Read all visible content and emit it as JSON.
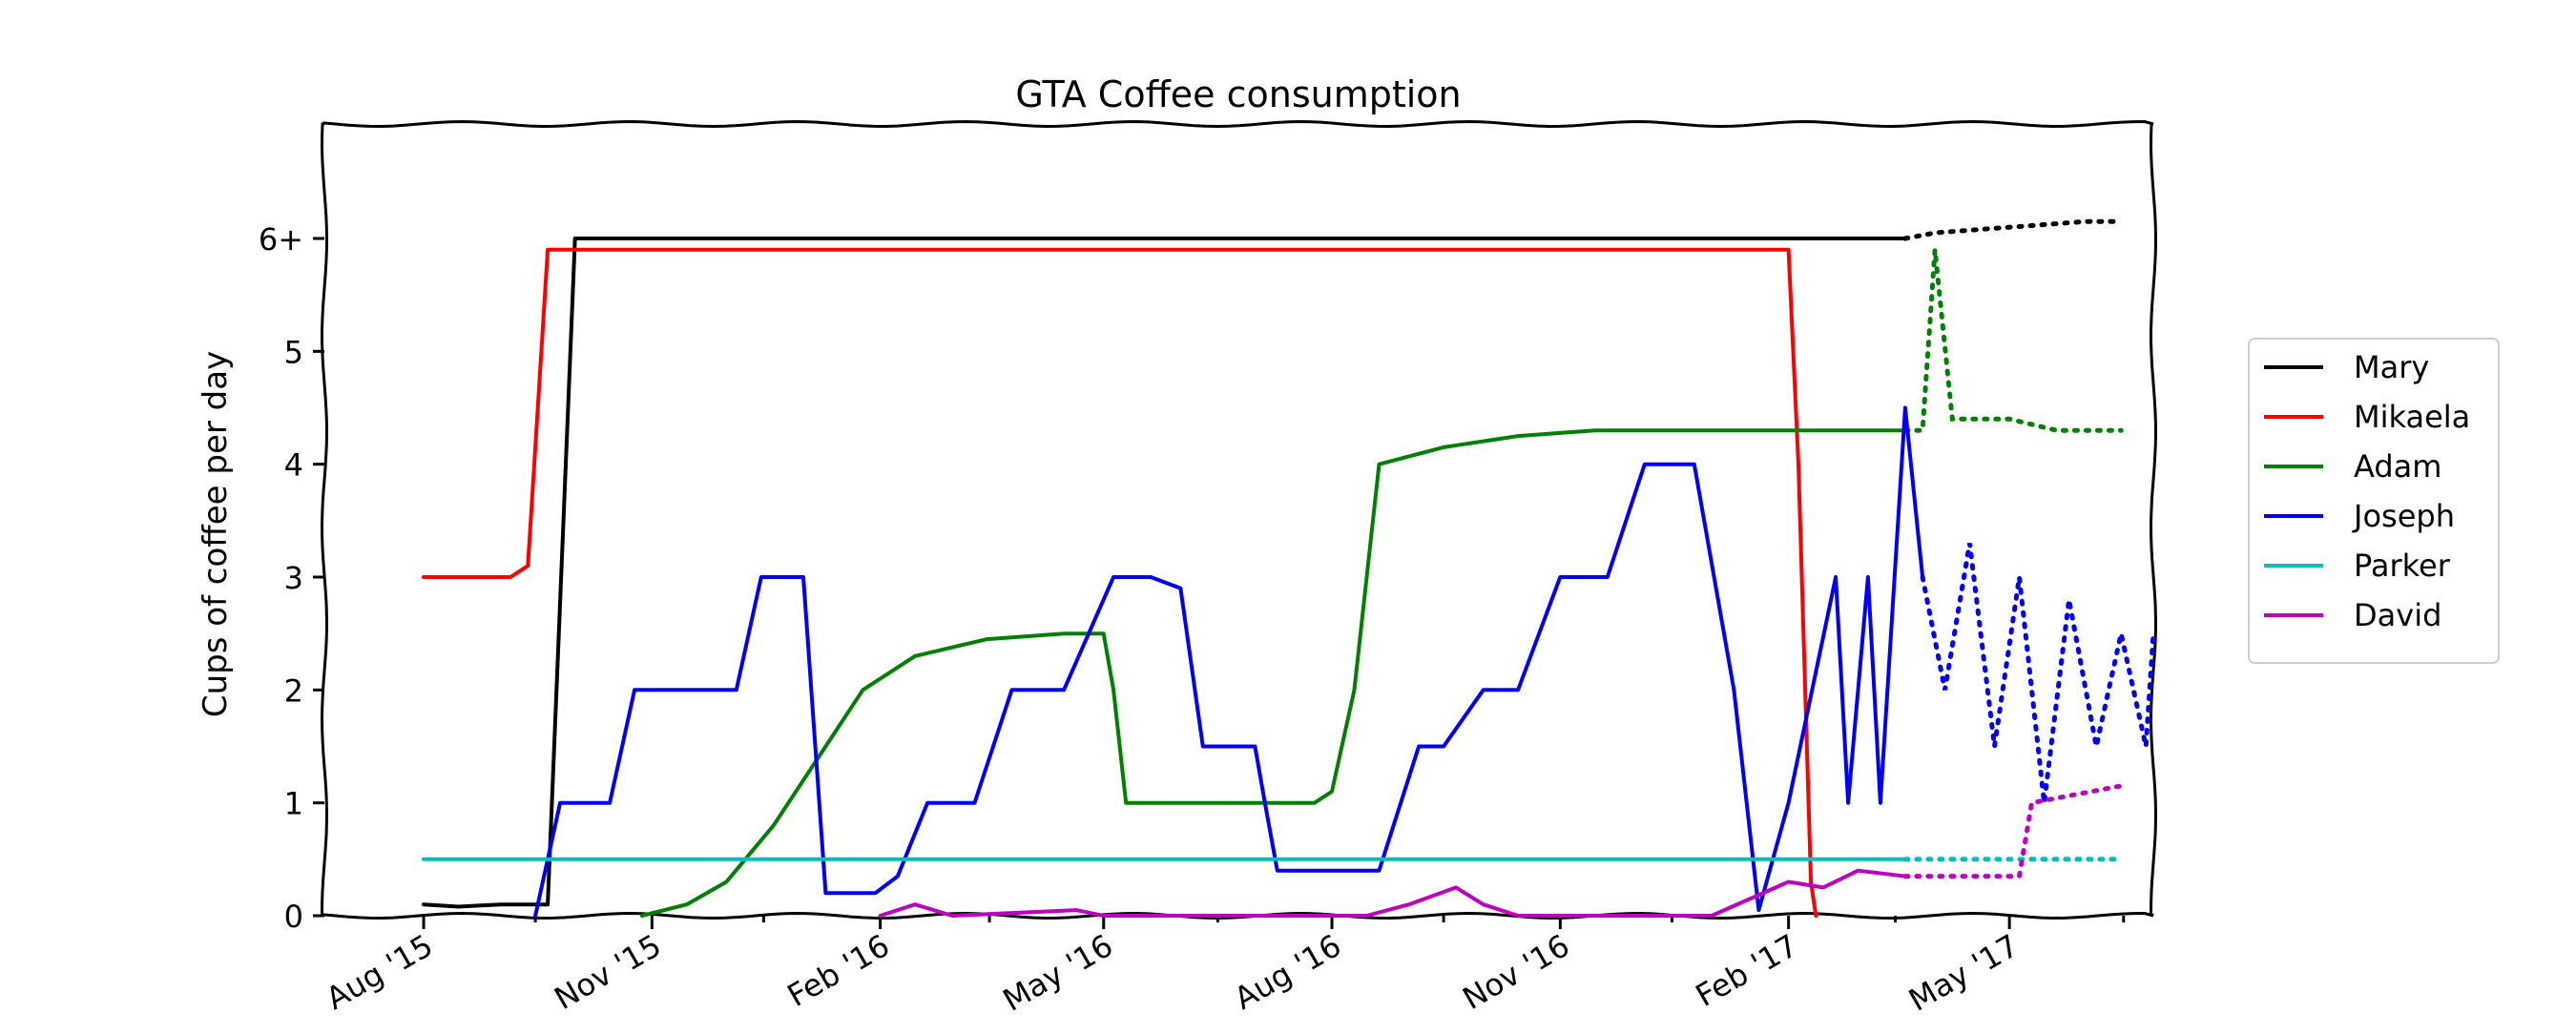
{
  "chart_data": {
    "type": "line",
    "title": "GTA Coffee consumption",
    "xlabel": "",
    "ylabel": "Cups of coffee per day",
    "x_ticks": [
      "Aug '15",
      "Nov '15",
      "Feb '16",
      "May '16",
      "Aug '16",
      "Nov '16",
      "Feb '17",
      "May '17"
    ],
    "y_ticks": [
      {
        "value": 0,
        "label": "0"
      },
      {
        "value": 1,
        "label": "1"
      },
      {
        "value": 2,
        "label": "2"
      },
      {
        "value": 3,
        "label": "3"
      },
      {
        "value": 4,
        "label": "4"
      },
      {
        "value": 5,
        "label": "5"
      },
      {
        "value": 6,
        "label": "6+"
      }
    ],
    "xlim": [
      "2015-06-22",
      "2017-06-28"
    ],
    "ylim": [
      0,
      6.0
    ],
    "grid": false,
    "legend_position": "right",
    "series": [
      {
        "name": "Mary",
        "color": "#000000",
        "solid": [
          [
            "2015-08-01",
            0.1
          ],
          [
            "2015-08-15",
            0.08
          ],
          [
            "2015-09-01",
            0.1
          ],
          [
            "2015-09-10",
            0.1
          ],
          [
            "2015-09-20",
            0.1
          ],
          [
            "2015-10-01",
            6.0
          ],
          [
            "2015-11-01",
            6.0
          ],
          [
            "2015-12-01",
            6.0
          ],
          [
            "2016-01-01",
            6.0
          ],
          [
            "2016-02-01",
            6.0
          ],
          [
            "2016-03-01",
            6.0
          ],
          [
            "2016-04-01",
            6.0
          ],
          [
            "2016-05-01",
            6.0
          ],
          [
            "2016-06-01",
            6.0
          ],
          [
            "2016-07-01",
            6.0
          ],
          [
            "2016-08-01",
            6.0
          ],
          [
            "2016-09-01",
            6.0
          ],
          [
            "2016-10-01",
            6.0
          ],
          [
            "2016-11-01",
            6.0
          ],
          [
            "2016-12-01",
            6.0
          ],
          [
            "2017-01-01",
            6.0
          ],
          [
            "2017-02-01",
            6.0
          ],
          [
            "2017-03-01",
            6.0
          ],
          [
            "2017-03-20",
            6.0
          ]
        ],
        "dotted": [
          [
            "2017-03-20",
            6.0
          ],
          [
            "2017-04-01",
            6.05
          ],
          [
            "2017-05-01",
            6.1
          ],
          [
            "2017-06-01",
            6.15
          ],
          [
            "2017-06-15",
            6.15
          ]
        ]
      },
      {
        "name": "Mikaela",
        "color": "#ff0000",
        "solid": [
          [
            "2015-08-01",
            3.0
          ],
          [
            "2015-08-10",
            3.0
          ],
          [
            "2015-08-25",
            3.0
          ],
          [
            "2015-09-05",
            3.0
          ],
          [
            "2015-09-12",
            3.1
          ],
          [
            "2015-09-20",
            5.9
          ],
          [
            "2015-10-15",
            5.9
          ],
          [
            "2015-12-01",
            5.9
          ],
          [
            "2016-02-01",
            5.9
          ],
          [
            "2016-05-01",
            5.9
          ],
          [
            "2016-08-01",
            5.9
          ],
          [
            "2016-11-01",
            5.9
          ],
          [
            "2017-01-01",
            5.9
          ],
          [
            "2017-02-01",
            5.9
          ],
          [
            "2017-02-05",
            4.0
          ],
          [
            "2017-02-10",
            0.3
          ],
          [
            "2017-02-12",
            0.0
          ]
        ],
        "dotted": []
      },
      {
        "name": "Adam",
        "color": "#008000",
        "solid": [
          [
            "2015-10-28",
            0.0
          ],
          [
            "2015-11-15",
            0.1
          ],
          [
            "2015-12-01",
            0.3
          ],
          [
            "2015-12-20",
            0.8
          ],
          [
            "2016-01-10",
            1.5
          ],
          [
            "2016-01-25",
            2.0
          ],
          [
            "2016-02-15",
            2.3
          ],
          [
            "2016-03-15",
            2.45
          ],
          [
            "2016-04-15",
            2.5
          ],
          [
            "2016-05-01",
            2.5
          ],
          [
            "2016-05-05",
            2.0
          ],
          [
            "2016-05-10",
            1.0
          ],
          [
            "2016-06-01",
            1.0
          ],
          [
            "2016-07-01",
            1.0
          ],
          [
            "2016-07-25",
            1.0
          ],
          [
            "2016-08-01",
            1.1
          ],
          [
            "2016-08-10",
            2.0
          ],
          [
            "2016-08-20",
            4.0
          ],
          [
            "2016-09-15",
            4.15
          ],
          [
            "2016-10-15",
            4.25
          ],
          [
            "2016-11-15",
            4.3
          ],
          [
            "2017-01-01",
            4.3
          ],
          [
            "2017-03-01",
            4.3
          ],
          [
            "2017-03-20",
            4.3
          ]
        ],
        "dotted": [
          [
            "2017-03-20",
            4.3
          ],
          [
            "2017-03-27",
            4.3
          ],
          [
            "2017-04-01",
            5.9
          ],
          [
            "2017-04-08",
            4.4
          ],
          [
            "2017-05-01",
            4.4
          ],
          [
            "2017-05-20",
            4.3
          ],
          [
            "2017-06-15",
            4.3
          ]
        ]
      },
      {
        "name": "Joseph",
        "color": "#0000ff",
        "solid": [
          [
            "2015-09-15",
            0.0
          ],
          [
            "2015-09-25",
            1.0
          ],
          [
            "2015-10-15",
            1.0
          ],
          [
            "2015-10-25",
            2.0
          ],
          [
            "2015-11-15",
            2.0
          ],
          [
            "2015-12-05",
            2.0
          ],
          [
            "2015-12-15",
            3.0
          ],
          [
            "2016-01-01",
            3.0
          ],
          [
            "2016-01-10",
            0.2
          ],
          [
            "2016-01-30",
            0.2
          ],
          [
            "2016-02-08",
            0.35
          ],
          [
            "2016-02-20",
            1.0
          ],
          [
            "2016-03-10",
            1.0
          ],
          [
            "2016-03-25",
            2.0
          ],
          [
            "2016-04-15",
            2.0
          ],
          [
            "2016-05-05",
            3.0
          ],
          [
            "2016-05-20",
            3.0
          ],
          [
            "2016-06-01",
            2.9
          ],
          [
            "2016-06-10",
            1.5
          ],
          [
            "2016-07-01",
            1.5
          ],
          [
            "2016-07-05",
            1.0
          ],
          [
            "2016-07-10",
            0.4
          ],
          [
            "2016-08-01",
            0.4
          ],
          [
            "2016-08-20",
            0.4
          ],
          [
            "2016-09-05",
            1.5
          ],
          [
            "2016-09-15",
            1.5
          ],
          [
            "2016-10-01",
            2.0
          ],
          [
            "2016-10-15",
            2.0
          ],
          [
            "2016-11-01",
            3.0
          ],
          [
            "2016-11-20",
            3.0
          ],
          [
            "2016-12-05",
            4.0
          ],
          [
            "2016-12-25",
            4.0
          ],
          [
            "2017-01-10",
            2.0
          ],
          [
            "2017-01-20",
            0.05
          ],
          [
            "2017-02-01",
            1.0
          ],
          [
            "2017-02-20",
            3.0
          ],
          [
            "2017-02-25",
            1.0
          ],
          [
            "2017-03-05",
            3.0
          ],
          [
            "2017-03-10",
            1.0
          ],
          [
            "2017-03-20",
            4.5
          ],
          [
            "2017-03-27",
            3.0
          ]
        ],
        "dotted": [
          [
            "2017-03-27",
            3.0
          ],
          [
            "2017-04-05",
            2.0
          ],
          [
            "2017-04-15",
            3.3
          ],
          [
            "2017-04-25",
            1.5
          ],
          [
            "2017-05-05",
            3.0
          ],
          [
            "2017-05-15",
            1.0
          ],
          [
            "2017-05-25",
            2.8
          ],
          [
            "2017-06-05",
            1.5
          ],
          [
            "2017-06-15",
            2.5
          ],
          [
            "2017-06-25",
            1.5
          ],
          [
            "2017-06-28",
            2.5
          ]
        ]
      },
      {
        "name": "Parker",
        "color": "#00bfbf",
        "solid": [
          [
            "2015-08-01",
            0.5
          ],
          [
            "2015-09-01",
            0.5
          ],
          [
            "2015-10-01",
            0.5
          ],
          [
            "2015-11-01",
            0.5
          ],
          [
            "2015-12-01",
            0.5
          ],
          [
            "2016-01-01",
            0.5
          ],
          [
            "2016-02-01",
            0.5
          ],
          [
            "2016-03-01",
            0.5
          ],
          [
            "2016-04-01",
            0.5
          ],
          [
            "2016-05-01",
            0.5
          ],
          [
            "2016-06-01",
            0.5
          ],
          [
            "2016-07-01",
            0.5
          ],
          [
            "2016-08-01",
            0.5
          ],
          [
            "2016-09-01",
            0.5
          ],
          [
            "2016-10-01",
            0.5
          ],
          [
            "2016-11-01",
            0.5
          ],
          [
            "2016-12-01",
            0.5
          ],
          [
            "2017-01-01",
            0.5
          ],
          [
            "2017-02-01",
            0.5
          ],
          [
            "2017-03-20",
            0.5
          ]
        ],
        "dotted": [
          [
            "2017-03-20",
            0.5
          ],
          [
            "2017-04-15",
            0.5
          ],
          [
            "2017-05-15",
            0.5
          ],
          [
            "2017-06-15",
            0.5
          ]
        ]
      },
      {
        "name": "David",
        "color": "#bf00bf",
        "solid": [
          [
            "2016-02-01",
            0.0
          ],
          [
            "2016-02-15",
            0.1
          ],
          [
            "2016-03-01",
            0.0
          ],
          [
            "2016-04-20",
            0.05
          ],
          [
            "2016-05-01",
            0.0
          ],
          [
            "2016-08-15",
            0.0
          ],
          [
            "2016-09-01",
            0.1
          ],
          [
            "2016-09-20",
            0.25
          ],
          [
            "2016-10-01",
            0.1
          ],
          [
            "2016-10-15",
            0.0
          ],
          [
            "2017-01-01",
            0.0
          ],
          [
            "2017-02-01",
            0.3
          ],
          [
            "2017-02-15",
            0.25
          ],
          [
            "2017-03-01",
            0.4
          ],
          [
            "2017-03-20",
            0.35
          ]
        ],
        "dotted": [
          [
            "2017-03-20",
            0.35
          ],
          [
            "2017-04-15",
            0.35
          ],
          [
            "2017-05-05",
            0.35
          ],
          [
            "2017-05-10",
            1.0
          ],
          [
            "2017-06-15",
            1.15
          ]
        ]
      }
    ]
  }
}
